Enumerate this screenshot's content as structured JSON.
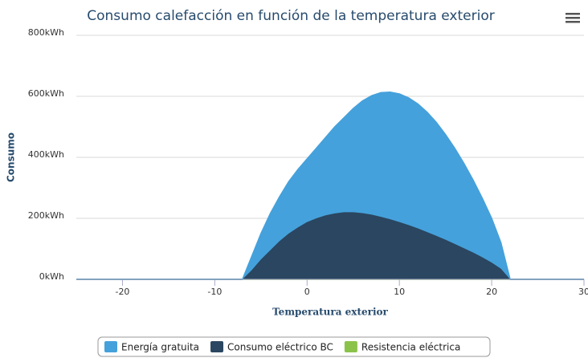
{
  "chart_data": {
    "type": "area",
    "stacked": true,
    "title": "Consumo calefacción en función de la temperatura exterior",
    "x_label": "Temperatura exterior",
    "y_label": "Consumo",
    "x": [
      -25,
      -7,
      -6,
      -5,
      -4,
      -3,
      -2,
      -1,
      0,
      1,
      2,
      3,
      4,
      5,
      6,
      7,
      8,
      9,
      10,
      11,
      12,
      13,
      14,
      15,
      16,
      17,
      18,
      19,
      20,
      21,
      22,
      30
    ],
    "series": [
      {
        "name": "Energía gratuita",
        "color": "#45a1db",
        "values": [
          0,
          0,
          45,
          85,
          120,
          145,
          170,
          190,
          207,
          230,
          255,
          284,
          310,
          340,
          368,
          390,
          407,
          417,
          420,
          417,
          408,
          393,
          372,
          345,
          314,
          278,
          237,
          193,
          145,
          85,
          0,
          0
        ]
      },
      {
        "name": "Consumo eléctrico BC",
        "color": "#2b4660",
        "values": [
          0,
          0,
          30,
          65,
          95,
          125,
          150,
          170,
          188,
          200,
          210,
          216,
          220,
          220,
          217,
          212,
          205,
          197,
          188,
          178,
          167,
          155,
          143,
          130,
          116,
          102,
          88,
          72,
          55,
          35,
          0,
          0
        ]
      },
      {
        "name": "Resistencia eléctrica",
        "color": "#8bc34a",
        "values": [
          0,
          0,
          0,
          0,
          0,
          0,
          0,
          0,
          0,
          0,
          0,
          0,
          0,
          0,
          0,
          0,
          0,
          0,
          0,
          0,
          0,
          0,
          0,
          0,
          0,
          0,
          0,
          0,
          0,
          0,
          0,
          0
        ]
      }
    ],
    "xlim": [
      -25,
      30
    ],
    "xticks": [
      -20,
      -10,
      0,
      10,
      20,
      30
    ],
    "ylim": [
      0,
      800
    ],
    "yticks": [
      {
        "value": 0,
        "label": "0kWh"
      },
      {
        "value": 200,
        "label": "200kWh"
      },
      {
        "value": 400,
        "label": "400kWh"
      },
      {
        "value": 600,
        "label": "600kWh"
      },
      {
        "value": 800,
        "label": "800kWh"
      }
    ],
    "grid": true
  }
}
